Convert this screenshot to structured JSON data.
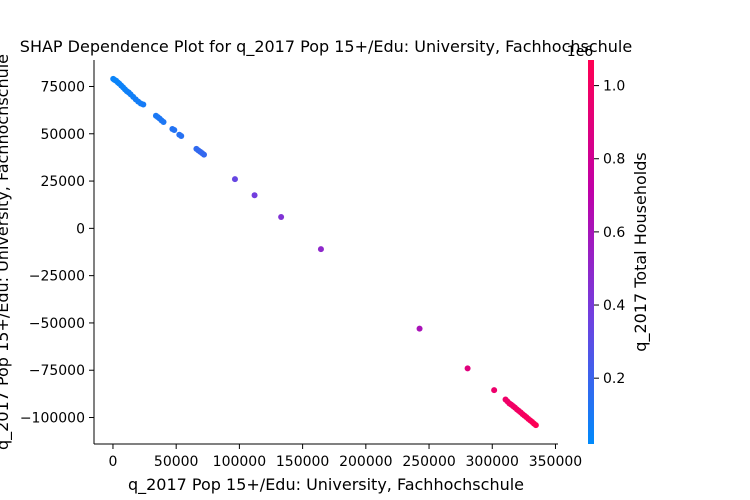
{
  "chart_data": {
    "type": "scatter",
    "title": "SHAP Dependence Plot for q_2017 Pop 15+/Edu: University, Fachhochschule",
    "xlabel": "q_2017 Pop 15+/Edu: University, Fachhochschule",
    "ylabel": "q_2017 Pop 15+/Edu: University, Fachhochschule",
    "xlim": [
      -15000,
      352000
    ],
    "ylim": [
      -114000,
      89000
    ],
    "xticks": [
      0,
      50000,
      100000,
      150000,
      200000,
      250000,
      300000,
      350000
    ],
    "xtick_labels": [
      "0",
      "50000",
      "100000",
      "150000",
      "200000",
      "250000",
      "300000",
      "350000"
    ],
    "yticks": [
      75000,
      50000,
      25000,
      0,
      -25000,
      -50000,
      -75000,
      -100000
    ],
    "ytick_labels": [
      "75000",
      "50000",
      "25000",
      "0",
      "−25000",
      "−50000",
      "−75000",
      "−100000"
    ],
    "grid": false,
    "colorbar": {
      "label": "q_2017 Total Households",
      "offset_label": "1e6",
      "range": [
        0.02,
        1.07
      ],
      "ticks": [
        0.2,
        0.4,
        0.6,
        0.8,
        1.0
      ],
      "tick_labels": [
        "0.2",
        "0.4",
        "0.6",
        "0.8",
        "1.0"
      ],
      "colors": [
        "#008afb",
        "#7040e0",
        "#c000a8",
        "#ff0052"
      ]
    },
    "points": [
      {
        "x": 200,
        "y": 79000,
        "c": 0.05
      },
      {
        "x": 1200,
        "y": 78500,
        "c": 0.05
      },
      {
        "x": 2500,
        "y": 78000,
        "c": 0.05
      },
      {
        "x": 3800,
        "y": 77200,
        "c": 0.05
      },
      {
        "x": 5000,
        "y": 76500,
        "c": 0.05
      },
      {
        "x": 6500,
        "y": 75500,
        "c": 0.06
      },
      {
        "x": 8000,
        "y": 74500,
        "c": 0.06
      },
      {
        "x": 9500,
        "y": 73500,
        "c": 0.06
      },
      {
        "x": 11000,
        "y": 72500,
        "c": 0.06
      },
      {
        "x": 12500,
        "y": 71800,
        "c": 0.07
      },
      {
        "x": 14000,
        "y": 70800,
        "c": 0.07
      },
      {
        "x": 16000,
        "y": 69500,
        "c": 0.07
      },
      {
        "x": 18000,
        "y": 68200,
        "c": 0.08
      },
      {
        "x": 20000,
        "y": 67000,
        "c": 0.08
      },
      {
        "x": 22000,
        "y": 66000,
        "c": 0.08
      },
      {
        "x": 24000,
        "y": 65500,
        "c": 0.09
      },
      {
        "x": 34000,
        "y": 59500,
        "c": 0.1
      },
      {
        "x": 35500,
        "y": 58800,
        "c": 0.1
      },
      {
        "x": 37000,
        "y": 58000,
        "c": 0.11
      },
      {
        "x": 38500,
        "y": 57000,
        "c": 0.11
      },
      {
        "x": 40000,
        "y": 56200,
        "c": 0.11
      },
      {
        "x": 47000,
        "y": 52500,
        "c": 0.13
      },
      {
        "x": 48500,
        "y": 52000,
        "c": 0.13
      },
      {
        "x": 52500,
        "y": 49500,
        "c": 0.14
      },
      {
        "x": 54000,
        "y": 48800,
        "c": 0.14
      },
      {
        "x": 66000,
        "y": 42000,
        "c": 0.17
      },
      {
        "x": 67500,
        "y": 41200,
        "c": 0.17
      },
      {
        "x": 69000,
        "y": 40500,
        "c": 0.18
      },
      {
        "x": 70500,
        "y": 39800,
        "c": 0.18
      },
      {
        "x": 72000,
        "y": 39000,
        "c": 0.18
      },
      {
        "x": 96500,
        "y": 26000,
        "c": 0.34
      },
      {
        "x": 112000,
        "y": 17500,
        "c": 0.38
      },
      {
        "x": 133000,
        "y": 6000,
        "c": 0.44
      },
      {
        "x": 164500,
        "y": -11000,
        "c": 0.5
      },
      {
        "x": 242500,
        "y": -53000,
        "c": 0.62
      },
      {
        "x": 280500,
        "y": -74000,
        "c": 0.9
      },
      {
        "x": 301500,
        "y": -85500,
        "c": 0.97
      },
      {
        "x": 310500,
        "y": -90500,
        "c": 0.98
      },
      {
        "x": 312000,
        "y": -91500,
        "c": 0.98
      },
      {
        "x": 313500,
        "y": -92500,
        "c": 0.99
      },
      {
        "x": 315000,
        "y": -93200,
        "c": 0.99
      },
      {
        "x": 316500,
        "y": -94000,
        "c": 0.99
      },
      {
        "x": 318000,
        "y": -94800,
        "c": 1.0
      },
      {
        "x": 319500,
        "y": -95700,
        "c": 1.0
      },
      {
        "x": 321000,
        "y": -96500,
        "c": 1.0
      },
      {
        "x": 322500,
        "y": -97300,
        "c": 1.01
      },
      {
        "x": 324000,
        "y": -98200,
        "c": 1.01
      },
      {
        "x": 325500,
        "y": -99000,
        "c": 1.02
      },
      {
        "x": 327000,
        "y": -99800,
        "c": 1.02
      },
      {
        "x": 328500,
        "y": -100700,
        "c": 1.03
      },
      {
        "x": 330000,
        "y": -101500,
        "c": 1.03
      },
      {
        "x": 331500,
        "y": -102300,
        "c": 1.04
      },
      {
        "x": 333000,
        "y": -103200,
        "c": 1.05
      },
      {
        "x": 334500,
        "y": -104000,
        "c": 1.06
      }
    ]
  }
}
